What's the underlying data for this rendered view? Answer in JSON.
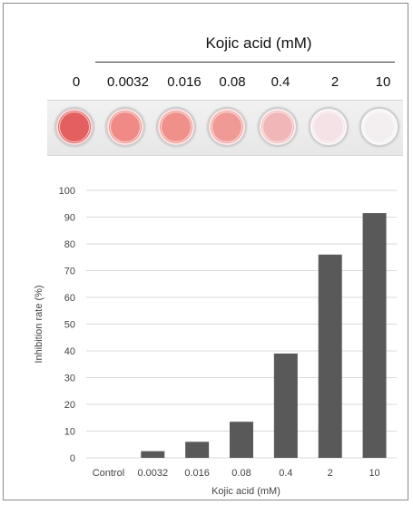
{
  "header": {
    "title": "Kojic acid (mM)",
    "concentrations": [
      "0",
      "0.0032",
      "0.016",
      "0.08",
      "0.4",
      "2",
      "10"
    ]
  },
  "plate": {
    "well_colors": [
      "#e45f5f",
      "#ef8a86",
      "#f0908a",
      "#f09a96",
      "#f0b6b8",
      "#f4e2e6",
      "#f3eef0"
    ]
  },
  "chart_data": {
    "type": "bar",
    "categories": [
      "Control",
      "0.0032",
      "0.016",
      "0.08",
      "0.4",
      "2",
      "10"
    ],
    "values": [
      0,
      2.5,
      6,
      13.5,
      39,
      76,
      91.5
    ],
    "xlabel": "Kojic acid (mM)",
    "ylabel": "Inhibition rate (%)",
    "ylim": [
      0,
      100
    ],
    "yticks": [
      0,
      10,
      20,
      30,
      40,
      50,
      60,
      70,
      80,
      90,
      100
    ],
    "grid": true,
    "bar_color": "#595959",
    "grid_color": "#d9d9d9"
  }
}
